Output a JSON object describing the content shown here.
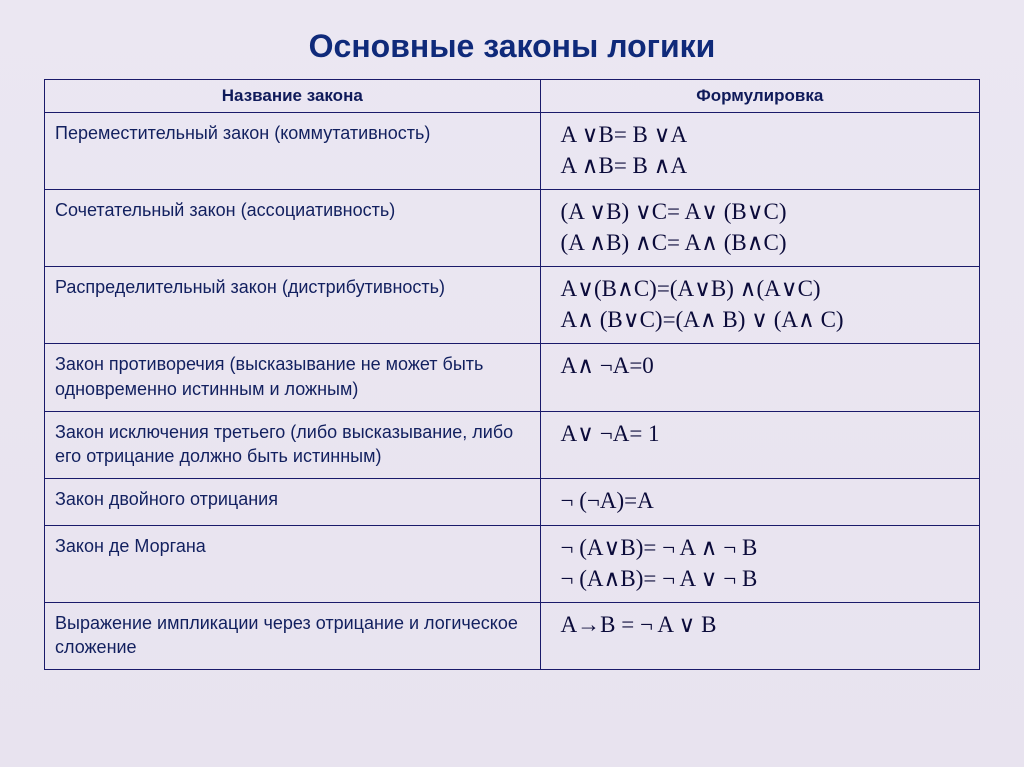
{
  "title": "Основные законы логики",
  "columns": [
    "Название закона",
    "Формулировка"
  ],
  "rows": [
    {
      "name": "Переместительный закон (коммутативность)",
      "formula": "A ∨B= B ∨A\nA ∧B= B ∧A"
    },
    {
      "name": "Сочетательный закон (ассоциативность)",
      "formula": "(A ∨B) ∨C= A∨ (B∨C)\n(A ∧B) ∧C= A∧ (B∧C)"
    },
    {
      "name": "Распределительный закон (дистрибутивность)",
      "formula": "A∨(B∧C)=(A∨B) ∧(A∨C)\nA∧ (B∨C)=(A∧ B) ∨ (A∧ C)"
    },
    {
      "name": "Закон противоречия (высказывание не может быть одновременно истинным и ложным)",
      "formula": "A∧ ¬A=0"
    },
    {
      "name": "Закон исключения третьего (либо высказывание, либо его отрицание должно быть истинным)",
      "formula": "A∨ ¬A= 1"
    },
    {
      "name": "Закон двойного отрицания",
      "formula": "¬ (¬A)=A"
    },
    {
      "name": "Закон де Моргана",
      "formula": "¬ (A∨B)= ¬ A ∧ ¬ B\n¬ (A∧B)= ¬ A ∨ ¬ B"
    },
    {
      "name": "Выражение импликации через отрицание и логическое сложение",
      "formula": "A→B = ¬ A ∨ B"
    }
  ],
  "style": {
    "title_color": "#0f2a7a",
    "title_fontsize": 32,
    "border_color": "#1a1a6a",
    "name_color": "#12205f",
    "name_fontsize": 18,
    "formula_color": "#0b0b3a",
    "formula_fontsize": 23,
    "background_gradient": [
      "#ebe7f2",
      "#e8e3ef"
    ],
    "col_widths": [
      "53%",
      "47%"
    ]
  }
}
